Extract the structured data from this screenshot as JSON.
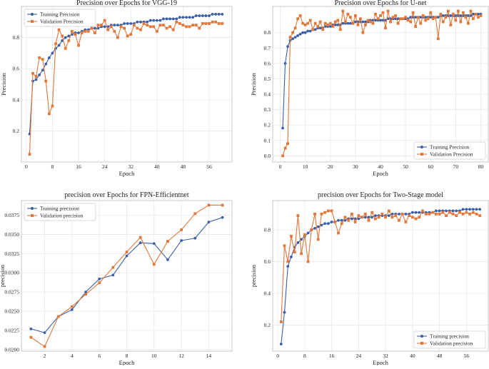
{
  "colors": {
    "training": "#3a5fa8",
    "validation": "#e2773a"
  },
  "chart_data": [
    {
      "type": "line",
      "title": "Precision over Epochs for VGG-19",
      "xlabel": "Epoch",
      "ylabel": "Precision",
      "xlim": [
        -1.5,
        63
      ],
      "ylim": [
        0.0,
        1.0
      ],
      "xticks": [
        0,
        8,
        16,
        24,
        32,
        40,
        48,
        56
      ],
      "yticks": [
        0.2,
        0.4,
        0.6,
        0.8
      ],
      "ytick_labels": [
        "0.2",
        "0.4",
        "0.6",
        "0.8"
      ],
      "legend_loc": "top-left",
      "series": [
        {
          "name": "Training Precision",
          "key": "training",
          "marker": "circle",
          "x": [
            1,
            2,
            3,
            4,
            5,
            6,
            7,
            8,
            9,
            10,
            11,
            12,
            13,
            14,
            15,
            16,
            17,
            18,
            19,
            20,
            21,
            22,
            23,
            24,
            25,
            26,
            27,
            28,
            29,
            30,
            31,
            32,
            33,
            34,
            35,
            36,
            37,
            38,
            39,
            40,
            41,
            42,
            43,
            44,
            45,
            46,
            47,
            48,
            49,
            50,
            51,
            52,
            53,
            54,
            55,
            56,
            57,
            58,
            59,
            60
          ],
          "y": [
            0.18,
            0.52,
            0.53,
            0.56,
            0.59,
            0.63,
            0.67,
            0.7,
            0.73,
            0.75,
            0.78,
            0.8,
            0.81,
            0.82,
            0.83,
            0.83,
            0.84,
            0.85,
            0.85,
            0.86,
            0.86,
            0.86,
            0.87,
            0.87,
            0.87,
            0.88,
            0.88,
            0.88,
            0.88,
            0.89,
            0.89,
            0.89,
            0.89,
            0.9,
            0.9,
            0.9,
            0.9,
            0.91,
            0.91,
            0.91,
            0.91,
            0.92,
            0.92,
            0.92,
            0.92,
            0.92,
            0.93,
            0.93,
            0.93,
            0.93,
            0.93,
            0.94,
            0.94,
            0.94,
            0.94,
            0.94,
            0.95,
            0.95,
            0.95,
            0.95
          ]
        },
        {
          "name": "Validation Precision",
          "key": "validation",
          "marker": "square",
          "x": [
            1,
            2,
            3,
            4,
            5,
            6,
            7,
            8,
            9,
            10,
            11,
            12,
            13,
            14,
            15,
            16,
            17,
            18,
            19,
            20,
            21,
            22,
            23,
            24,
            25,
            26,
            27,
            28,
            29,
            30,
            31,
            32,
            33,
            34,
            35,
            36,
            37,
            38,
            39,
            40,
            41,
            42,
            43,
            44,
            45,
            46,
            47,
            48,
            49,
            50,
            51,
            52,
            53,
            54,
            55,
            56,
            57,
            58,
            59,
            60
          ],
          "y": [
            0.05,
            0.57,
            0.55,
            0.67,
            0.66,
            0.52,
            0.31,
            0.36,
            0.76,
            0.85,
            0.81,
            0.73,
            0.78,
            0.84,
            0.82,
            0.75,
            0.83,
            0.84,
            0.84,
            0.86,
            0.83,
            0.88,
            0.88,
            0.91,
            0.85,
            0.87,
            0.84,
            0.8,
            0.87,
            0.86,
            0.81,
            0.82,
            0.88,
            0.86,
            0.85,
            0.89,
            0.88,
            0.87,
            0.87,
            0.84,
            0.88,
            0.88,
            0.86,
            0.87,
            0.85,
            0.9,
            0.89,
            0.88,
            0.87,
            0.87,
            0.88,
            0.88,
            0.86,
            0.89,
            0.89,
            0.89,
            0.9,
            0.9,
            0.89,
            0.89
          ]
        }
      ]
    },
    {
      "type": "line",
      "title": "Precision over Epochs for U-net",
      "xlabel": "Epoch",
      "ylabel": "Precision",
      "xlim": [
        -3,
        83
      ],
      "ylim": [
        -0.04,
        0.97
      ],
      "xticks": [
        0,
        10,
        20,
        30,
        40,
        50,
        60,
        70,
        80
      ],
      "yticks": [
        0.0,
        0.1,
        0.2,
        0.3,
        0.4,
        0.5,
        0.6,
        0.7,
        0.8
      ],
      "ytick_labels": [
        "0.0",
        "0.1",
        "0.2",
        "0.3",
        "0.4",
        "0.5",
        "0.6",
        "0.7",
        "0.8"
      ],
      "legend_loc": "bottom-right",
      "series": [
        {
          "name": "Training Precision",
          "key": "training",
          "marker": "circle",
          "x": [
            1,
            2,
            3,
            4,
            5,
            6,
            7,
            8,
            9,
            10,
            11,
            12,
            13,
            14,
            15,
            16,
            17,
            18,
            19,
            20,
            21,
            22,
            23,
            24,
            25,
            26,
            27,
            28,
            29,
            30,
            31,
            32,
            33,
            34,
            35,
            36,
            37,
            38,
            39,
            40,
            41,
            42,
            43,
            44,
            45,
            46,
            47,
            48,
            49,
            50,
            51,
            52,
            53,
            54,
            55,
            56,
            57,
            58,
            59,
            60,
            61,
            62,
            63,
            64,
            65,
            66,
            67,
            68,
            69,
            70,
            71,
            72,
            73,
            74,
            75,
            76,
            77,
            78,
            79,
            80
          ],
          "y": [
            0.18,
            0.6,
            0.71,
            0.75,
            0.76,
            0.77,
            0.78,
            0.79,
            0.8,
            0.8,
            0.81,
            0.81,
            0.82,
            0.82,
            0.83,
            0.83,
            0.83,
            0.84,
            0.84,
            0.84,
            0.85,
            0.85,
            0.85,
            0.85,
            0.86,
            0.86,
            0.86,
            0.86,
            0.86,
            0.87,
            0.87,
            0.87,
            0.87,
            0.87,
            0.87,
            0.88,
            0.88,
            0.88,
            0.88,
            0.88,
            0.88,
            0.88,
            0.89,
            0.89,
            0.89,
            0.89,
            0.89,
            0.89,
            0.89,
            0.89,
            0.89,
            0.9,
            0.9,
            0.9,
            0.9,
            0.9,
            0.9,
            0.9,
            0.9,
            0.9,
            0.9,
            0.9,
            0.9,
            0.91,
            0.91,
            0.91,
            0.91,
            0.91,
            0.91,
            0.91,
            0.91,
            0.91,
            0.91,
            0.91,
            0.91,
            0.91,
            0.92,
            0.92,
            0.92,
            0.92
          ]
        },
        {
          "name": "Validation Precision",
          "key": "validation",
          "marker": "square",
          "x": [
            1,
            2,
            3,
            4,
            5,
            6,
            7,
            8,
            9,
            10,
            11,
            12,
            13,
            14,
            15,
            16,
            17,
            18,
            19,
            20,
            21,
            22,
            23,
            24,
            25,
            26,
            27,
            28,
            29,
            30,
            31,
            32,
            33,
            34,
            35,
            36,
            37,
            38,
            39,
            40,
            41,
            42,
            43,
            44,
            45,
            46,
            47,
            48,
            49,
            50,
            51,
            52,
            53,
            54,
            55,
            56,
            57,
            58,
            59,
            60,
            61,
            62,
            63,
            64,
            65,
            66,
            67,
            68,
            69,
            70,
            71,
            72,
            73,
            74,
            75,
            76,
            77,
            78,
            79,
            80
          ],
          "y": [
            0.0,
            0.05,
            0.08,
            0.77,
            0.8,
            0.83,
            0.89,
            0.91,
            0.86,
            0.85,
            0.86,
            0.88,
            0.82,
            0.86,
            0.84,
            0.87,
            0.82,
            0.86,
            0.85,
            0.86,
            0.84,
            0.87,
            0.88,
            0.82,
            0.94,
            0.87,
            0.92,
            0.9,
            0.86,
            0.91,
            0.85,
            0.89,
            0.8,
            0.85,
            0.88,
            0.87,
            0.86,
            0.92,
            0.89,
            0.91,
            0.93,
            0.83,
            0.94,
            0.87,
            0.9,
            0.91,
            0.86,
            0.89,
            0.89,
            0.9,
            0.88,
            0.87,
            0.93,
            0.84,
            0.9,
            0.86,
            0.91,
            0.88,
            0.89,
            0.93,
            0.89,
            0.9,
            0.76,
            0.92,
            0.87,
            0.9,
            0.94,
            0.85,
            0.92,
            0.88,
            0.94,
            0.87,
            0.93,
            0.9,
            0.86,
            0.94,
            0.89,
            0.92,
            0.9,
            0.91
          ]
        }
      ]
    },
    {
      "type": "line",
      "title": "precision over Epochs for FPN-Efficientnet",
      "xlabel": "Epoch",
      "ylabel": "precision",
      "xlim": [
        0.3,
        15.7
      ],
      "ylim": [
        0.0198,
        0.0394
      ],
      "xticks": [
        2,
        4,
        6,
        8,
        10,
        12,
        14
      ],
      "yticks": [
        0.02,
        0.0225,
        0.025,
        0.0275,
        0.03,
        0.0325,
        0.035,
        0.0375
      ],
      "ytick_labels": [
        "0.0200",
        "0.0225",
        "0.0250",
        "0.0275",
        "0.0300",
        "0.0325",
        "0.0350",
        "0.0375"
      ],
      "legend_loc": "top-left",
      "series": [
        {
          "name": "Training precision",
          "key": "training",
          "marker": "circle",
          "x": [
            1,
            2,
            3,
            4,
            5,
            6,
            7,
            8,
            9,
            10,
            11,
            12,
            13,
            14,
            15
          ],
          "y": [
            0.0227,
            0.0222,
            0.0243,
            0.0252,
            0.0275,
            0.0292,
            0.0297,
            0.0322,
            0.0339,
            0.0338,
            0.0317,
            0.0342,
            0.0345,
            0.0366,
            0.0372
          ]
        },
        {
          "name": "Validation precision",
          "key": "validation",
          "marker": "square",
          "x": [
            1,
            2,
            3,
            4,
            5,
            6,
            7,
            8,
            9,
            10,
            11,
            12,
            13,
            14,
            15
          ],
          "y": [
            0.0216,
            0.0204,
            0.0243,
            0.0256,
            0.0272,
            0.0287,
            0.0307,
            0.0327,
            0.0346,
            0.0311,
            0.0341,
            0.0356,
            0.0377,
            0.0388,
            0.0388
          ]
        }
      ]
    },
    {
      "type": "line",
      "title": "precision over Epochs for Two-Stage model",
      "xlabel": "Epoch",
      "ylabel": "precision",
      "xlim": [
        -1.5,
        62.5
      ],
      "ylim": [
        0.035,
        0.985
      ],
      "xticks": [
        0,
        8,
        16,
        24,
        32,
        40,
        48,
        56
      ],
      "yticks": [
        0.2,
        0.4,
        0.6,
        0.8
      ],
      "ytick_labels": [
        "0.2",
        "0.4",
        "0.6",
        "0.8"
      ],
      "legend_loc": "bottom-right",
      "series": [
        {
          "name": "Training precision",
          "key": "training",
          "marker": "circle",
          "x": [
            1,
            2,
            3,
            4,
            5,
            6,
            7,
            8,
            9,
            10,
            11,
            12,
            13,
            14,
            15,
            16,
            17,
            18,
            19,
            20,
            21,
            22,
            23,
            24,
            25,
            26,
            27,
            28,
            29,
            30,
            31,
            32,
            33,
            34,
            35,
            36,
            37,
            38,
            39,
            40,
            41,
            42,
            43,
            44,
            45,
            46,
            47,
            48,
            49,
            50,
            51,
            52,
            53,
            54,
            55,
            56,
            57,
            58,
            59,
            60
          ],
          "y": [
            0.08,
            0.28,
            0.57,
            0.63,
            0.69,
            0.72,
            0.74,
            0.76,
            0.78,
            0.8,
            0.81,
            0.82,
            0.83,
            0.84,
            0.84,
            0.85,
            0.85,
            0.86,
            0.86,
            0.86,
            0.87,
            0.87,
            0.87,
            0.87,
            0.88,
            0.88,
            0.88,
            0.88,
            0.89,
            0.89,
            0.89,
            0.89,
            0.89,
            0.9,
            0.9,
            0.9,
            0.9,
            0.9,
            0.9,
            0.91,
            0.91,
            0.91,
            0.91,
            0.91,
            0.91,
            0.91,
            0.92,
            0.92,
            0.92,
            0.92,
            0.92,
            0.92,
            0.92,
            0.92,
            0.93,
            0.93,
            0.93,
            0.93,
            0.93,
            0.93
          ]
        },
        {
          "name": "Validation precision",
          "key": "validation",
          "marker": "square",
          "x": [
            1,
            2,
            3,
            4,
            5,
            6,
            7,
            8,
            9,
            10,
            11,
            12,
            13,
            14,
            15,
            16,
            17,
            18,
            19,
            20,
            21,
            22,
            23,
            24,
            25,
            26,
            27,
            28,
            29,
            30,
            31,
            32,
            33,
            34,
            35,
            36,
            37,
            38,
            39,
            40,
            41,
            42,
            43,
            44,
            45,
            46,
            47,
            48,
            49,
            50,
            51,
            52,
            53,
            54,
            55,
            56,
            57,
            58,
            59,
            60
          ],
          "y": [
            0.22,
            0.7,
            0.6,
            0.76,
            0.66,
            0.89,
            0.65,
            0.77,
            0.6,
            0.8,
            0.9,
            0.74,
            0.9,
            0.91,
            0.92,
            0.92,
            0.85,
            0.78,
            0.84,
            0.88,
            0.86,
            0.9,
            0.85,
            0.89,
            0.88,
            0.9,
            0.86,
            0.91,
            0.87,
            0.88,
            0.9,
            0.88,
            0.92,
            0.88,
            0.89,
            0.86,
            0.9,
            0.85,
            0.89,
            0.88,
            0.87,
            0.88,
            0.92,
            0.9,
            0.9,
            0.91,
            0.9,
            0.9,
            0.91,
            0.89,
            0.91,
            0.9,
            0.89,
            0.91,
            0.9,
            0.91,
            0.9,
            0.91,
            0.9,
            0.89
          ]
        }
      ]
    }
  ]
}
